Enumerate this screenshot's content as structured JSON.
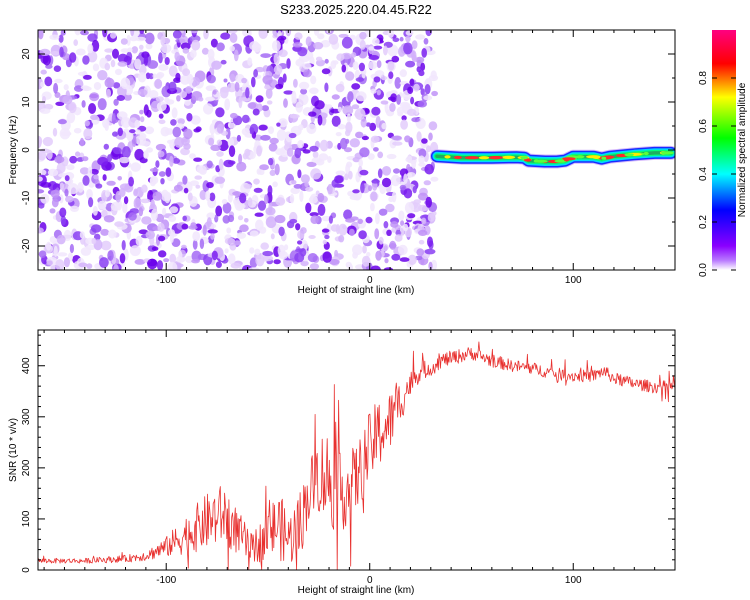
{
  "title": "S233.2025.220.04.45.R22",
  "colors": {
    "snr_line": "#e8312f",
    "axis": "#000000"
  },
  "chart_data": [
    {
      "type": "heatmap",
      "xlabel": "Height of straight line (km)",
      "ylabel": "Frequency (Hz)",
      "xlim": [
        -163,
        150
      ],
      "ylim": [
        -25,
        25
      ],
      "x_ticks": [
        -100,
        0,
        100
      ],
      "y_ticks": [
        -20,
        -10,
        0,
        10,
        20
      ],
      "noise_region_x": [
        -163,
        32
      ],
      "signal_track": {
        "x": [
          33,
          45,
          60,
          72,
          76,
          78,
          86,
          92,
          96,
          100,
          110,
          114,
          118,
          130,
          140,
          148
        ],
        "freq_hz": [
          -1.3,
          -1.6,
          -1.6,
          -1.5,
          -1.6,
          -2.2,
          -2.4,
          -2.4,
          -2.2,
          -1.4,
          -1.4,
          -1.8,
          -1.4,
          -0.9,
          -0.6,
          -0.6
        ],
        "peak_amplitude": 0.95
      },
      "colorbar": {
        "label": "Normalized spectral amplitude",
        "range": [
          0,
          1
        ],
        "ticks": [
          "0.0",
          "0.2",
          "0.4",
          "0.6",
          "0.8"
        ],
        "colormap": [
          "#ffffff",
          "#8a00ff",
          "#0000ff",
          "#00ffff",
          "#00ff00",
          "#ffff00",
          "#ff0000",
          "#ff0080"
        ]
      }
    },
    {
      "type": "line",
      "xlabel": "Height of straight line (km)",
      "ylabel": "SNR (10 * v/v)",
      "xlim": [
        -163,
        150
      ],
      "ylim": [
        0,
        470
      ],
      "x_ticks": [
        -100,
        0,
        100
      ],
      "y_ticks": [
        0,
        100,
        200,
        300,
        400
      ],
      "series": [
        {
          "x": [
            -163,
            -140,
            -120,
            -110,
            -100,
            -90,
            -80,
            -72,
            -65,
            -58,
            -50,
            -45,
            -40,
            -35,
            -30,
            -25,
            -20,
            -15,
            -10,
            -5,
            0,
            5,
            10,
            15,
            20,
            25,
            30,
            35,
            40,
            45,
            50,
            60,
            70,
            80,
            90,
            100,
            110,
            115,
            120,
            130,
            140,
            150
          ],
          "values": [
            18,
            18,
            22,
            28,
            45,
            70,
            95,
            110,
            75,
            40,
            70,
            90,
            60,
            80,
            150,
            190,
            180,
            150,
            160,
            190,
            240,
            270,
            290,
            330,
            365,
            390,
            395,
            410,
            415,
            420,
            425,
            410,
            400,
            395,
            385,
            380,
            380,
            390,
            375,
            365,
            358,
            360
          ],
          "noise_amp": [
            5,
            5,
            7,
            10,
            20,
            40,
            55,
            60,
            45,
            30,
            50,
            70,
            50,
            70,
            60,
            80,
            100,
            80,
            70,
            70,
            70,
            70,
            60,
            45,
            25,
            18,
            16,
            15,
            14,
            14,
            13,
            13,
            12,
            12,
            12,
            12,
            12,
            12,
            12,
            12,
            12,
            12
          ],
          "sample_step_km": 0.35
        }
      ]
    }
  ]
}
